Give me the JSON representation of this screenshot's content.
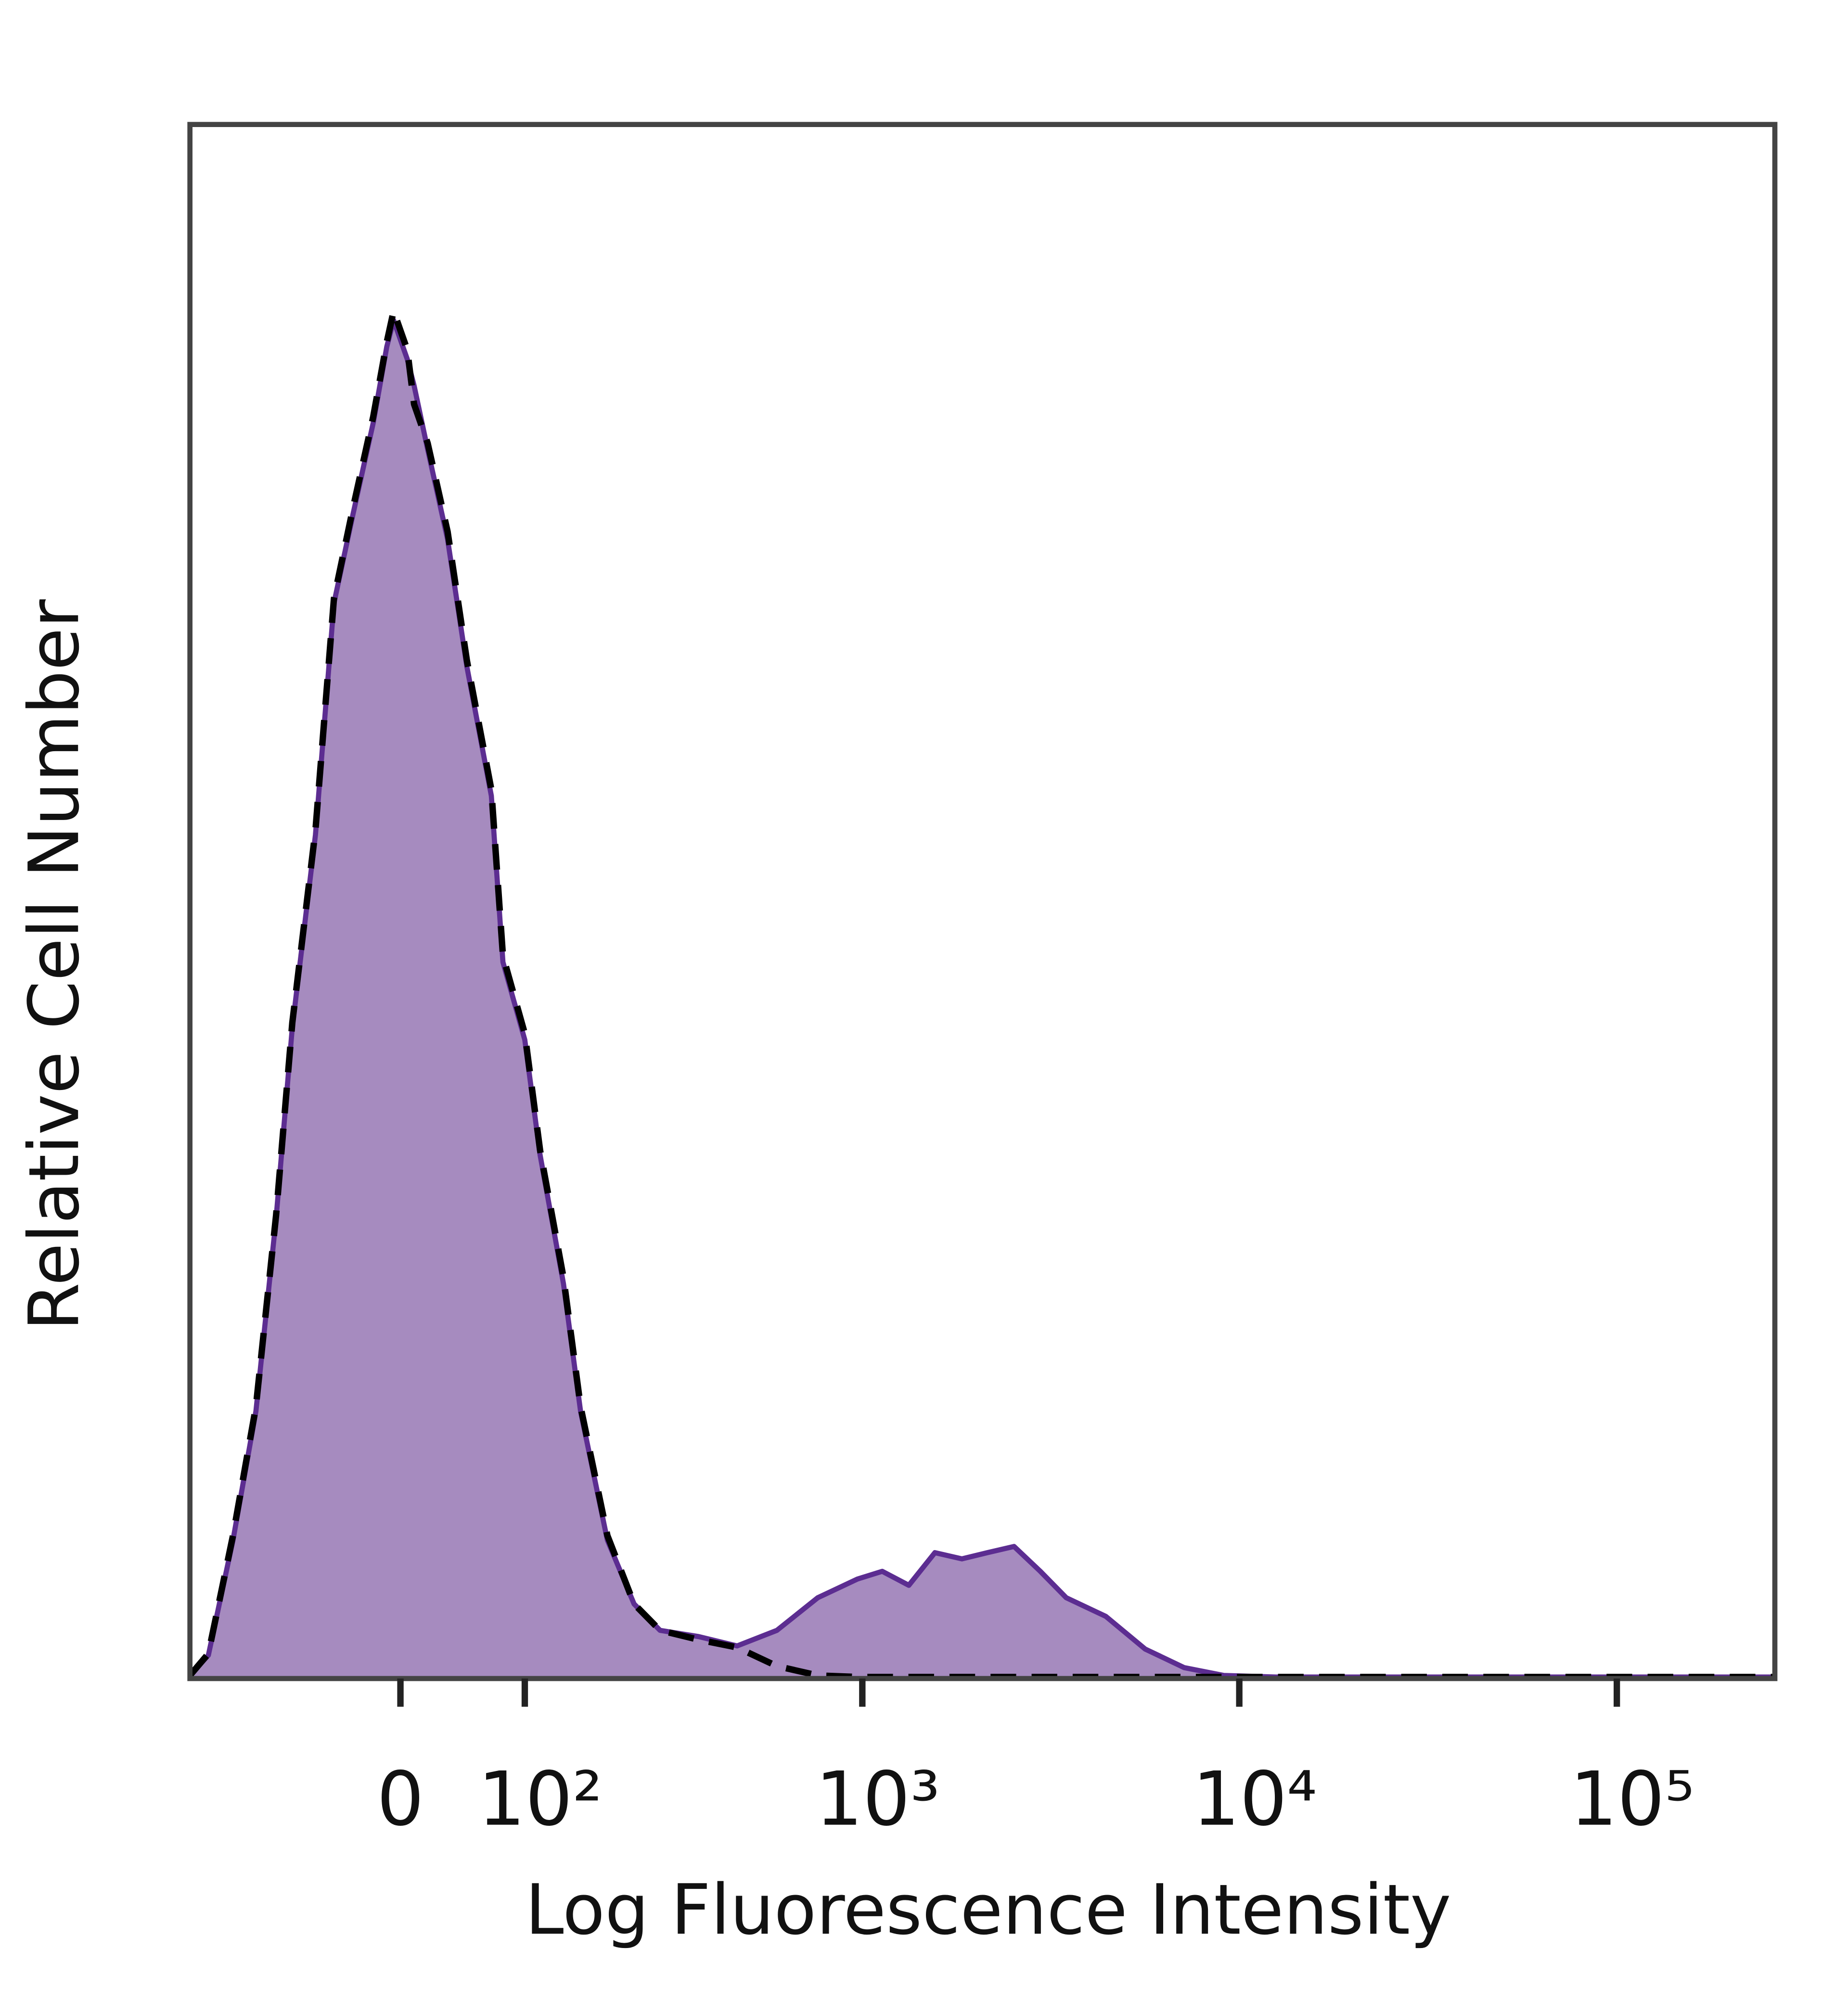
{
  "chart_data": {
    "type": "histogram-overlay",
    "x_label": "Log Fluorescence Intensity",
    "y_label": "Relative Cell Number",
    "xscale": "biexponential",
    "xlim": [
      -200,
      262144
    ],
    "ylim": [
      0,
      100
    ],
    "xticks": [
      0,
      {
        "value": 100,
        "label": "10²"
      },
      {
        "value": 1000,
        "label": "10³"
      },
      {
        "value": 10000,
        "label": "10⁴"
      },
      {
        "value": 100000,
        "label": "10⁵"
      }
    ],
    "x": [
      -200,
      -175,
      -145,
      -120,
      -100,
      -85,
      -65,
      -50,
      -35,
      -20,
      -10,
      -5,
      5,
      10,
      20,
      35,
      50,
      70,
      80,
      100,
      115,
      140,
      160,
      195,
      235,
      280,
      360,
      460,
      590,
      760,
      970,
      1130,
      1330,
      1560,
      1840,
      2150,
      2530,
      2970,
      3480,
      4430,
      5630,
      7150,
      9100,
      12500,
      32600,
      108000,
      260000
    ],
    "series": [
      {
        "color": "#5c2d91",
        "fill": "#a68bbf",
        "style": "solid",
        "values": [
          0.2,
          1.5,
          8.9,
          17.2,
          29.6,
          41.9,
          54.3,
          69.2,
          75,
          80.8,
          85.7,
          87.4,
          84.9,
          83.2,
          79.1,
          73.3,
          65.1,
          56.8,
          46.1,
          41.1,
          33.7,
          25.4,
          17.2,
          8.9,
          4.8,
          3.1,
          2.7,
          2.1,
          3.1,
          5.2,
          6.4,
          6.9,
          6.0,
          8.1,
          7.7,
          8.1,
          8.5,
          6.9,
          5.2,
          4.0,
          1.9,
          0.7,
          0.2,
          0.1,
          0.1,
          0.1,
          0.1
        ]
      },
      {
        "color": "#000000",
        "style": "dashed",
        "values": [
          0.2,
          1.6,
          9.2,
          17.5,
          29.8,
          42.2,
          54.6,
          69.5,
          75.4,
          81.2,
          86.0,
          88.0,
          85.5,
          82.0,
          79.5,
          73.8,
          65.5,
          57.2,
          46.5,
          41.5,
          34.0,
          25.8,
          17.5,
          9.2,
          4.8,
          3.1,
          2.5,
          2.0,
          0.8,
          0.2,
          0.1,
          0.1,
          0.1,
          0.1,
          0.1,
          0.1,
          0.1,
          0.1,
          0.1,
          0.1,
          0.1,
          0.1,
          0.1,
          0.1,
          0.1,
          0.1,
          0.1
        ]
      }
    ]
  }
}
